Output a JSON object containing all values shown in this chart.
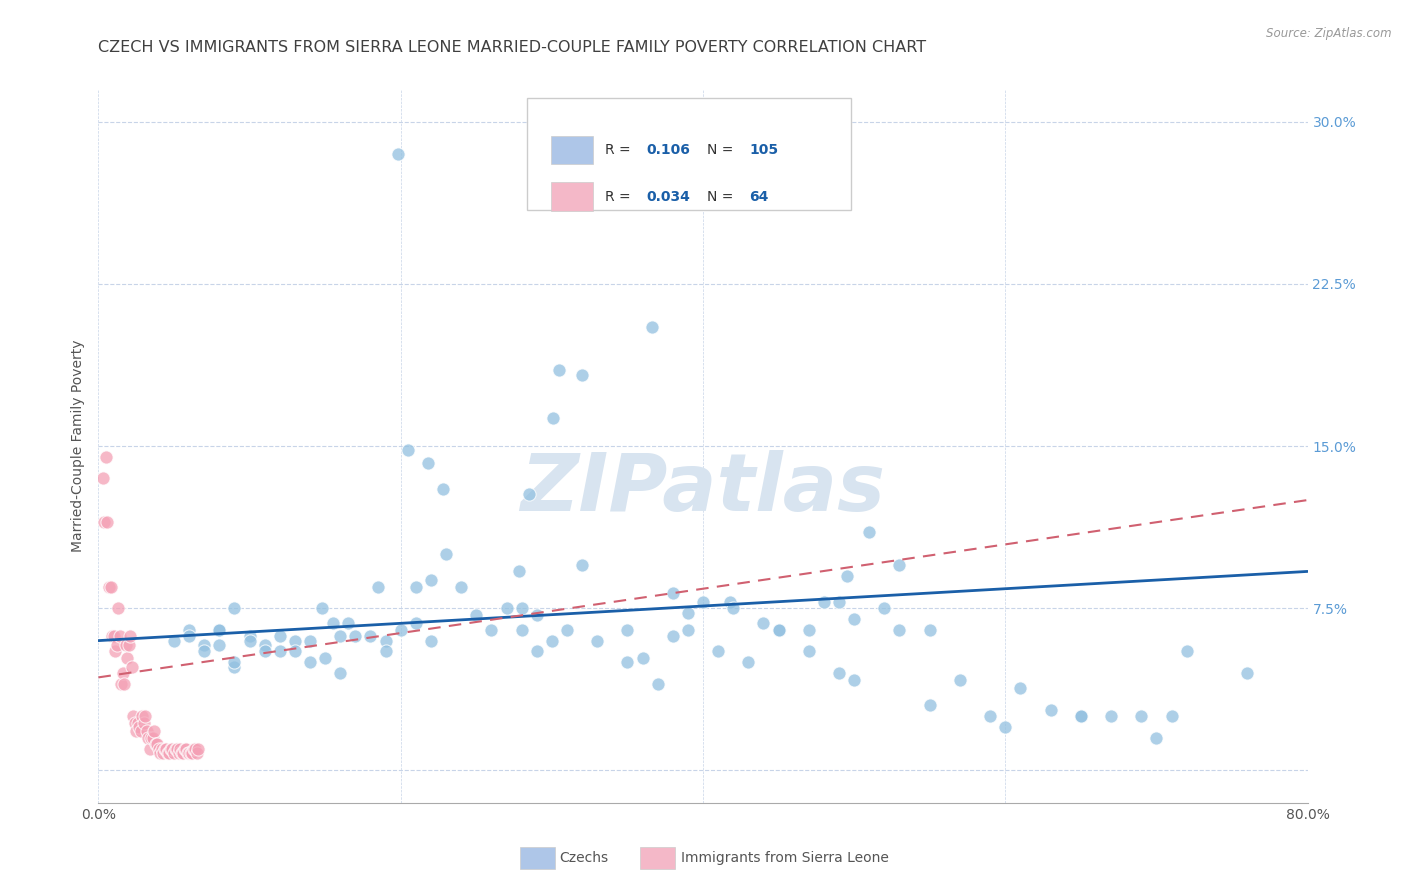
{
  "title": "CZECH VS IMMIGRANTS FROM SIERRA LEONE MARRIED-COUPLE FAMILY POVERTY CORRELATION CHART",
  "source": "Source: ZipAtlas.com",
  "ylabel": "Married-Couple Family Poverty",
  "x_min": 0.0,
  "x_max": 0.8,
  "y_min": -0.015,
  "y_max": 0.315,
  "x_ticks": [
    0.0,
    0.2,
    0.4,
    0.6,
    0.8
  ],
  "x_tick_labels": [
    "0.0%",
    "",
    "",
    "",
    "80.0%"
  ],
  "y_ticks": [
    0.0,
    0.075,
    0.15,
    0.225,
    0.3
  ],
  "y_tick_labels": [
    "",
    "7.5%",
    "15.0%",
    "22.5%",
    "30.0%"
  ],
  "watermark": "ZIPatlas",
  "blue_scatter_x": [
    0.198,
    0.366,
    0.305,
    0.32,
    0.301,
    0.205,
    0.218,
    0.285,
    0.228,
    0.32,
    0.418,
    0.495,
    0.39,
    0.42,
    0.38,
    0.278,
    0.24,
    0.185,
    0.19,
    0.155,
    0.16,
    0.148,
    0.165,
    0.21,
    0.22,
    0.23,
    0.28,
    0.29,
    0.31,
    0.33,
    0.35,
    0.37,
    0.39,
    0.41,
    0.43,
    0.45,
    0.47,
    0.49,
    0.51,
    0.53,
    0.55,
    0.57,
    0.59,
    0.61,
    0.63,
    0.65,
    0.67,
    0.69,
    0.71,
    0.08,
    0.09,
    0.1,
    0.11,
    0.12,
    0.13,
    0.14,
    0.15,
    0.16,
    0.17,
    0.18,
    0.19,
    0.2,
    0.21,
    0.22,
    0.06,
    0.07,
    0.08,
    0.09,
    0.05,
    0.06,
    0.07,
    0.08,
    0.09,
    0.1,
    0.11,
    0.12,
    0.13,
    0.14,
    0.72,
    0.76,
    0.3,
    0.35,
    0.4,
    0.45,
    0.5,
    0.55,
    0.6,
    0.65,
    0.7,
    0.25,
    0.26,
    0.27,
    0.28,
    0.29,
    0.48,
    0.49,
    0.5,
    0.52,
    0.53,
    0.47,
    0.44,
    0.38,
    0.36
  ],
  "blue_scatter_y": [
    0.285,
    0.205,
    0.185,
    0.183,
    0.163,
    0.148,
    0.142,
    0.128,
    0.13,
    0.095,
    0.078,
    0.09,
    0.073,
    0.075,
    0.062,
    0.092,
    0.085,
    0.085,
    0.06,
    0.068,
    0.062,
    0.075,
    0.068,
    0.085,
    0.088,
    0.1,
    0.075,
    0.072,
    0.065,
    0.06,
    0.065,
    0.04,
    0.065,
    0.055,
    0.05,
    0.065,
    0.055,
    0.045,
    0.11,
    0.095,
    0.065,
    0.042,
    0.025,
    0.038,
    0.028,
    0.025,
    0.025,
    0.025,
    0.025,
    0.065,
    0.075,
    0.062,
    0.058,
    0.055,
    0.06,
    0.06,
    0.052,
    0.045,
    0.062,
    0.062,
    0.055,
    0.065,
    0.068,
    0.06,
    0.065,
    0.058,
    0.065,
    0.048,
    0.06,
    0.062,
    0.055,
    0.058,
    0.05,
    0.06,
    0.055,
    0.062,
    0.055,
    0.05,
    0.055,
    0.045,
    0.06,
    0.05,
    0.078,
    0.065,
    0.042,
    0.03,
    0.02,
    0.025,
    0.015,
    0.072,
    0.065,
    0.075,
    0.065,
    0.055,
    0.078,
    0.078,
    0.07,
    0.075,
    0.065,
    0.065,
    0.068,
    0.082,
    0.052
  ],
  "pink_scatter_x": [
    0.003,
    0.004,
    0.005,
    0.006,
    0.007,
    0.008,
    0.009,
    0.01,
    0.011,
    0.012,
    0.013,
    0.014,
    0.015,
    0.016,
    0.017,
    0.018,
    0.019,
    0.02,
    0.021,
    0.022,
    0.023,
    0.024,
    0.025,
    0.026,
    0.027,
    0.028,
    0.029,
    0.03,
    0.031,
    0.032,
    0.033,
    0.034,
    0.035,
    0.036,
    0.037,
    0.038,
    0.039,
    0.04,
    0.041,
    0.042,
    0.043,
    0.044,
    0.045,
    0.046,
    0.047,
    0.048,
    0.049,
    0.05,
    0.051,
    0.052,
    0.053,
    0.054,
    0.055,
    0.056,
    0.057,
    0.058,
    0.059,
    0.06,
    0.061,
    0.062,
    0.063,
    0.064,
    0.065,
    0.066
  ],
  "pink_scatter_y": [
    0.135,
    0.115,
    0.145,
    0.115,
    0.085,
    0.085,
    0.062,
    0.062,
    0.055,
    0.058,
    0.075,
    0.062,
    0.04,
    0.045,
    0.04,
    0.058,
    0.052,
    0.058,
    0.062,
    0.048,
    0.025,
    0.022,
    0.018,
    0.022,
    0.02,
    0.018,
    0.025,
    0.022,
    0.025,
    0.018,
    0.015,
    0.01,
    0.015,
    0.015,
    0.018,
    0.012,
    0.012,
    0.01,
    0.008,
    0.01,
    0.008,
    0.01,
    0.01,
    0.008,
    0.008,
    0.01,
    0.01,
    0.008,
    0.01,
    0.01,
    0.008,
    0.01,
    0.008,
    0.008,
    0.01,
    0.01,
    0.008,
    0.008,
    0.008,
    0.008,
    0.01,
    0.01,
    0.008,
    0.01
  ],
  "blue_line_x": [
    0.0,
    0.8
  ],
  "blue_line_y": [
    0.06,
    0.092
  ],
  "pink_line_x": [
    0.0,
    0.8
  ],
  "pink_line_y": [
    0.043,
    0.125
  ],
  "blue_dot_color": "#92c0e0",
  "pink_dot_color": "#f4a0b5",
  "blue_line_color": "#1a5fa8",
  "pink_line_color": "#d06070",
  "grid_color": "#c8d4e8",
  "background_color": "#ffffff",
  "legend_blue_color": "#aec6e8",
  "legend_pink_color": "#f4b8c8",
  "tick_color_right": "#5b9bd5",
  "title_color": "#404040",
  "title_fontsize": 11.5,
  "source_text": "Source: ZipAtlas.com",
  "watermark_color": "#d8e4f0",
  "legend_R_N_color": "#1a5fa8",
  "bottom_label_blue": "Czechs",
  "bottom_label_pink": "Immigrants from Sierra Leone"
}
